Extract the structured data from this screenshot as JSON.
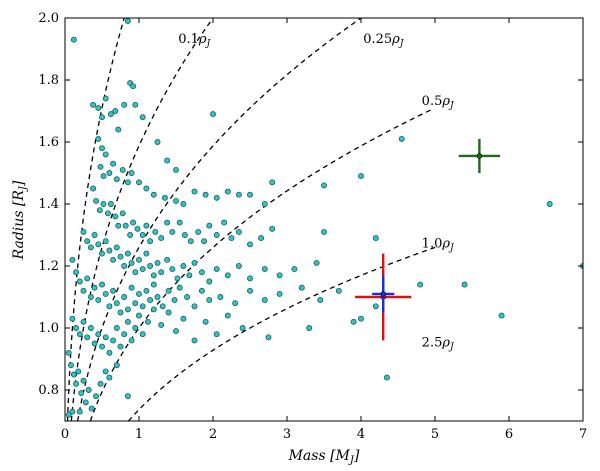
{
  "chart_data": {
    "type": "scatter",
    "title": "",
    "xlabel": "Mass [M",
    "xlabel_sub": "J",
    "xlabel_close": "]",
    "ylabel": "Radius [R",
    "ylabel_sub": "J",
    "ylabel_close": "]",
    "xlim": [
      0,
      7
    ],
    "ylim": [
      0.7,
      2.0
    ],
    "xticks": [
      0,
      1,
      2,
      3,
      4,
      5,
      6,
      7
    ],
    "yticks": [
      0.8,
      1.0,
      1.2,
      1.4,
      1.6,
      1.8,
      2.0
    ],
    "xtick_labels": [
      "0",
      "1",
      "2",
      "3",
      "4",
      "5",
      "6",
      "7"
    ],
    "ytick_labels": [
      "0.8",
      "1.0",
      "1.2",
      "1.4",
      "1.6",
      "1.8",
      "2.0"
    ],
    "grid": false,
    "point_color": "#2ec4c4",
    "density_curves": [
      {
        "label_num": "0.1",
        "sym": "ρ",
        "sub": "J",
        "density": 0.1,
        "label_x": 1.53,
        "label_y": 1.92
      },
      {
        "label_num": "0.25",
        "sym": "ρ",
        "sub": "J",
        "density": 0.25,
        "label_x": 4.03,
        "label_y": 1.92
      },
      {
        "label_num": "0.5",
        "sym": "ρ",
        "sub": "J",
        "density": 0.5,
        "label_x": 4.82,
        "label_y": 1.72
      },
      {
        "label_num": "1.0",
        "sym": "ρ",
        "sub": "J",
        "density": 1.0,
        "label_x": 4.82,
        "label_y": 1.26
      },
      {
        "label_num": "2.5",
        "sym": "ρ",
        "sub": "J",
        "density": 2.5,
        "label_x": 4.82,
        "label_y": 0.94
      }
    ],
    "highlighted": [
      {
        "x": 5.6,
        "y": 1.555,
        "xerr": 0.28,
        "yerr": 0.055,
        "xcolor": "#1e6b1e",
        "ycolor": "#1e6b1e"
      },
      {
        "x": 4.3,
        "y": 1.1,
        "xerr": 0.38,
        "yerr": 0.14,
        "xcolor": "#dd1111",
        "ycolor": "#dd1111"
      },
      {
        "x": 4.3,
        "y": 1.11,
        "xerr": 0.15,
        "yerr": 0.06,
        "xcolor": "#1a2fd6",
        "ycolor": "#1a2fd6"
      }
    ],
    "points": [
      [
        0.85,
        1.99
      ],
      [
        0.12,
        1.93
      ],
      [
        0.38,
        1.72
      ],
      [
        0.45,
        1.71
      ],
      [
        0.5,
        1.68
      ],
      [
        0.55,
        1.74
      ],
      [
        0.62,
        1.69
      ],
      [
        0.68,
        1.7
      ],
      [
        0.72,
        1.64
      ],
      [
        0.8,
        1.72
      ],
      [
        0.88,
        1.79
      ],
      [
        0.92,
        1.78
      ],
      [
        0.95,
        1.72
      ],
      [
        1.05,
        1.68
      ],
      [
        1.25,
        1.6
      ],
      [
        1.38,
        1.54
      ],
      [
        1.5,
        1.51
      ],
      [
        2.0,
        1.69
      ],
      [
        4.55,
        1.61
      ],
      [
        4.0,
        1.49
      ],
      [
        3.5,
        1.46
      ],
      [
        2.8,
        1.47
      ],
      [
        0.45,
        1.61
      ],
      [
        0.5,
        1.58
      ],
      [
        0.55,
        1.56
      ],
      [
        0.48,
        1.52
      ],
      [
        0.52,
        1.49
      ],
      [
        0.6,
        1.5
      ],
      [
        0.65,
        1.53
      ],
      [
        0.7,
        1.48
      ],
      [
        0.78,
        1.51
      ],
      [
        0.85,
        1.47
      ],
      [
        0.9,
        1.5
      ],
      [
        1.0,
        1.47
      ],
      [
        1.1,
        1.45
      ],
      [
        1.2,
        1.43
      ],
      [
        1.35,
        1.42
      ],
      [
        1.5,
        1.41
      ],
      [
        1.6,
        1.4
      ],
      [
        1.75,
        1.44
      ],
      [
        1.9,
        1.43
      ],
      [
        2.05,
        1.42
      ],
      [
        2.2,
        1.44
      ],
      [
        2.35,
        1.43
      ],
      [
        2.5,
        1.43
      ],
      [
        2.7,
        1.4
      ],
      [
        0.38,
        1.45
      ],
      [
        0.42,
        1.41
      ],
      [
        0.47,
        1.38
      ],
      [
        0.52,
        1.4
      ],
      [
        0.58,
        1.37
      ],
      [
        0.62,
        1.4
      ],
      [
        0.68,
        1.36
      ],
      [
        0.72,
        1.33
      ],
      [
        0.78,
        1.37
      ],
      [
        0.82,
        1.33
      ],
      [
        0.88,
        1.3
      ],
      [
        0.92,
        1.34
      ],
      [
        0.98,
        1.32
      ],
      [
        1.05,
        1.3
      ],
      [
        1.1,
        1.33
      ],
      [
        1.15,
        1.28
      ],
      [
        1.22,
        1.31
      ],
      [
        1.3,
        1.29
      ],
      [
        1.38,
        1.34
      ],
      [
        1.45,
        1.31
      ],
      [
        1.55,
        1.34
      ],
      [
        1.62,
        1.3
      ],
      [
        1.7,
        1.28
      ],
      [
        1.8,
        1.31
      ],
      [
        1.88,
        1.28
      ],
      [
        1.95,
        1.33
      ],
      [
        2.05,
        1.3
      ],
      [
        2.15,
        1.34
      ],
      [
        2.25,
        1.29
      ],
      [
        2.35,
        1.31
      ],
      [
        2.5,
        1.27
      ],
      [
        2.65,
        1.29
      ],
      [
        2.8,
        1.32
      ],
      [
        3.5,
        1.31
      ],
      [
        4.2,
        1.29
      ],
      [
        0.25,
        1.31
      ],
      [
        0.3,
        1.28
      ],
      [
        0.35,
        1.26
      ],
      [
        0.4,
        1.3
      ],
      [
        0.45,
        1.27
      ],
      [
        0.5,
        1.24
      ],
      [
        0.55,
        1.28
      ],
      [
        0.6,
        1.25
      ],
      [
        0.65,
        1.22
      ],
      [
        0.7,
        1.26
      ],
      [
        0.75,
        1.23
      ],
      [
        0.8,
        1.2
      ],
      [
        0.85,
        1.24
      ],
      [
        0.9,
        1.21
      ],
      [
        0.95,
        1.18
      ],
      [
        1.0,
        1.22
      ],
      [
        1.05,
        1.19
      ],
      [
        1.1,
        1.24
      ],
      [
        1.15,
        1.2
      ],
      [
        1.2,
        1.17
      ],
      [
        1.25,
        1.21
      ],
      [
        1.3,
        1.18
      ],
      [
        1.38,
        1.22
      ],
      [
        1.45,
        1.19
      ],
      [
        1.52,
        1.16
      ],
      [
        1.6,
        1.2
      ],
      [
        1.68,
        1.17
      ],
      [
        1.75,
        1.21
      ],
      [
        1.85,
        1.18
      ],
      [
        1.95,
        1.15
      ],
      [
        2.05,
        1.19
      ],
      [
        2.2,
        1.17
      ],
      [
        2.35,
        1.2
      ],
      [
        2.5,
        1.16
      ],
      [
        2.7,
        1.19
      ],
      [
        2.9,
        1.17
      ],
      [
        3.1,
        1.19
      ],
      [
        3.4,
        1.21
      ],
      [
        5.4,
        1.14
      ],
      [
        7.0,
        1.2
      ],
      [
        6.55,
        1.4
      ],
      [
        0.1,
        1.22
      ],
      [
        0.15,
        1.18
      ],
      [
        0.2,
        1.15
      ],
      [
        0.25,
        1.12
      ],
      [
        0.3,
        1.16
      ],
      [
        0.35,
        1.1
      ],
      [
        0.4,
        1.13
      ],
      [
        0.45,
        1.09
      ],
      [
        0.5,
        1.14
      ],
      [
        0.55,
        1.11
      ],
      [
        0.6,
        1.07
      ],
      [
        0.65,
        1.12
      ],
      [
        0.7,
        1.08
      ],
      [
        0.75,
        1.05
      ],
      [
        0.8,
        1.1
      ],
      [
        0.85,
        1.06
      ],
      [
        0.9,
        1.13
      ],
      [
        0.95,
        1.08
      ],
      [
        1.0,
        1.11
      ],
      [
        1.05,
        1.07
      ],
      [
        1.1,
        1.12
      ],
      [
        1.15,
        1.09
      ],
      [
        1.2,
        1.14
      ],
      [
        1.25,
        1.1
      ],
      [
        1.32,
        1.07
      ],
      [
        1.4,
        1.12
      ],
      [
        1.48,
        1.09
      ],
      [
        1.55,
        1.13
      ],
      [
        1.65,
        1.1
      ],
      [
        1.75,
        1.07
      ],
      [
        1.85,
        1.12
      ],
      [
        1.95,
        1.09
      ],
      [
        2.1,
        1.1
      ],
      [
        2.3,
        1.08
      ],
      [
        2.5,
        1.12
      ],
      [
        2.7,
        1.09
      ],
      [
        2.9,
        1.11
      ],
      [
        3.2,
        1.13
      ],
      [
        3.45,
        1.09
      ],
      [
        3.7,
        1.12
      ],
      [
        4.2,
        1.07
      ],
      [
        4.0,
        1.03
      ],
      [
        3.9,
        1.02
      ],
      [
        4.8,
        1.14
      ],
      [
        0.1,
        1.03
      ],
      [
        0.15,
        1.0
      ],
      [
        0.2,
        0.98
      ],
      [
        0.25,
        1.02
      ],
      [
        0.3,
        0.97
      ],
      [
        0.35,
        1.0
      ],
      [
        0.4,
        0.95
      ],
      [
        0.45,
        0.98
      ],
      [
        0.5,
        0.94
      ],
      [
        0.55,
        0.97
      ],
      [
        0.6,
        0.92
      ],
      [
        0.65,
        0.96
      ],
      [
        0.7,
        1.0
      ],
      [
        0.75,
        0.94
      ],
      [
        0.8,
        0.98
      ],
      [
        0.85,
        1.02
      ],
      [
        0.9,
        0.96
      ],
      [
        0.95,
        1.0
      ],
      [
        1.0,
        1.04
      ],
      [
        1.05,
        0.98
      ],
      [
        1.12,
        1.02
      ],
      [
        1.2,
        1.06
      ],
      [
        1.3,
        1.01
      ],
      [
        1.4,
        1.05
      ],
      [
        1.5,
        0.99
      ],
      [
        1.6,
        1.03
      ],
      [
        1.75,
        0.96
      ],
      [
        1.9,
        1.02
      ],
      [
        2.05,
        0.98
      ],
      [
        2.2,
        1.04
      ],
      [
        2.4,
        1.0
      ],
      [
        2.75,
        0.97
      ],
      [
        3.3,
        1.0
      ],
      [
        5.9,
        1.04
      ],
      [
        0.05,
        0.92
      ],
      [
        0.08,
        0.88
      ],
      [
        0.12,
        0.85
      ],
      [
        0.15,
        0.82
      ],
      [
        0.18,
        0.86
      ],
      [
        0.22,
        0.79
      ],
      [
        0.25,
        0.83
      ],
      [
        0.28,
        0.76
      ],
      [
        0.32,
        0.8
      ],
      [
        0.36,
        0.74
      ],
      [
        0.42,
        0.78
      ],
      [
        0.48,
        0.82
      ],
      [
        0.55,
        0.86
      ],
      [
        0.6,
        0.84
      ],
      [
        0.7,
        0.88
      ],
      [
        0.85,
        0.78
      ],
      [
        0.05,
        0.72
      ],
      [
        0.1,
        0.73
      ],
      [
        0.2,
        0.73
      ],
      [
        4.35,
        0.84
      ]
    ]
  }
}
